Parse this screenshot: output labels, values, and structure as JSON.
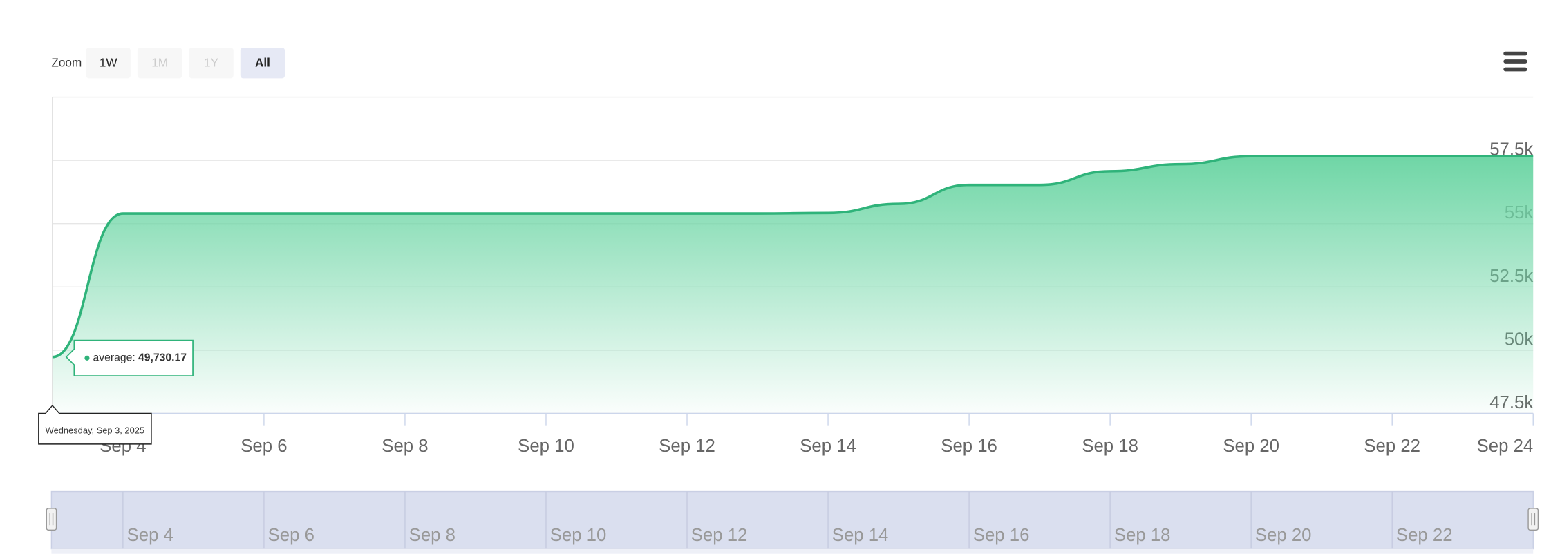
{
  "chart_data": {
    "type": "area",
    "x": [
      "Sep 3",
      "Sep 4",
      "Sep 5",
      "Sep 6",
      "Sep 7",
      "Sep 8",
      "Sep 9",
      "Sep 10",
      "Sep 11",
      "Sep 12",
      "Sep 13",
      "Sep 14",
      "Sep 15",
      "Sep 16",
      "Sep 17",
      "Sep 18",
      "Sep 19",
      "Sep 20",
      "Sep 21",
      "Sep 22",
      "Sep 23",
      "Sep 24"
    ],
    "values": [
      49730.17,
      55400,
      55400,
      55400,
      55400,
      55400,
      55400,
      55400,
      55400,
      55400,
      55400,
      55420,
      55780,
      56530,
      56530,
      57070,
      57350,
      57660,
      57660,
      57660,
      57660,
      57660
    ],
    "color": "#2fb37a",
    "xtick_indices": [
      1,
      3,
      5,
      7,
      9,
      11,
      13,
      15,
      17,
      19,
      21
    ],
    "navigator_tick_indices": [
      1,
      3,
      5,
      7,
      9,
      11,
      13,
      15,
      17,
      19
    ],
    "ylim": [
      47500,
      60000
    ],
    "yticks": [
      {
        "value": 47500,
        "label": "47.5k"
      },
      {
        "value": 50000,
        "label": "50k"
      },
      {
        "value": 52500,
        "label": "52.5k"
      },
      {
        "value": 55000,
        "label": "55k"
      },
      {
        "value": 57500,
        "label": "57.5k"
      }
    ],
    "grid": true,
    "tooltip": {
      "date": "Wednesday, Sep 3, 2025",
      "label": "average:",
      "value_label": "49,730.17"
    },
    "zoom": {
      "label": "Zoom",
      "buttons": [
        "1W",
        "1M",
        "1Y",
        "All"
      ],
      "active": 3,
      "disabled": [
        1,
        2
      ]
    }
  }
}
